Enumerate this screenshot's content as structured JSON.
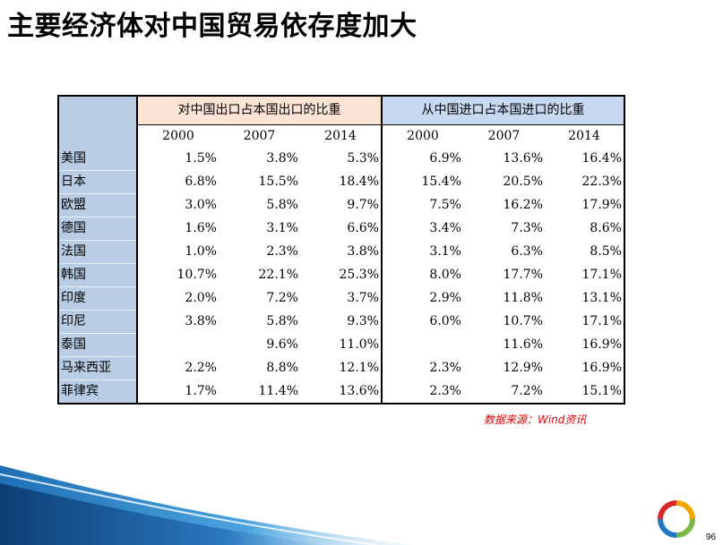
{
  "title": "主要经济体对中国贸易依存度加大",
  "table": {
    "header_export": "对中国出口占本国出口的比重",
    "header_import": "从中国进口占本国进口的比重",
    "years_export": [
      "2000",
      "2007",
      "2014"
    ],
    "years_import": [
      "2000",
      "2007",
      "2014"
    ],
    "rows": [
      {
        "country": "美国",
        "export": [
          "1.5%",
          "3.8%",
          "5.3%"
        ],
        "import": [
          "6.9%",
          "13.6%",
          "16.4%"
        ]
      },
      {
        "country": "日本",
        "export": [
          "6.8%",
          "15.5%",
          "18.4%"
        ],
        "import": [
          "15.4%",
          "20.5%",
          "22.3%"
        ]
      },
      {
        "country": "欧盟",
        "export": [
          "3.0%",
          "5.8%",
          "9.7%"
        ],
        "import": [
          "7.5%",
          "16.2%",
          "17.9%"
        ]
      },
      {
        "country": "德国",
        "export": [
          "1.6%",
          "3.1%",
          "6.6%"
        ],
        "import": [
          "3.4%",
          "7.3%",
          "8.6%"
        ]
      },
      {
        "country": "法国",
        "export": [
          "1.0%",
          "2.3%",
          "3.8%"
        ],
        "import": [
          "3.1%",
          "6.3%",
          "8.5%"
        ]
      },
      {
        "country": "韩国",
        "export": [
          "10.7%",
          "22.1%",
          "25.3%"
        ],
        "import": [
          "8.0%",
          "17.7%",
          "17.1%"
        ]
      },
      {
        "country": "印度",
        "export": [
          "2.0%",
          "7.2%",
          "3.7%"
        ],
        "import": [
          "2.9%",
          "11.8%",
          "13.1%"
        ]
      },
      {
        "country": "印尼",
        "export": [
          "3.8%",
          "5.8%",
          "9.3%"
        ],
        "import": [
          "6.0%",
          "10.7%",
          "17.1%"
        ]
      },
      {
        "country": "泰国",
        "export": [
          "",
          "9.6%",
          "11.0%"
        ],
        "import": [
          "",
          "11.6%",
          "16.9%"
        ]
      },
      {
        "country": "马来西亚",
        "export": [
          "2.2%",
          "8.8%",
          "12.1%"
        ],
        "import": [
          "2.3%",
          "12.9%",
          "16.9%"
        ]
      },
      {
        "country": "菲律宾",
        "export": [
          "1.7%",
          "11.4%",
          "13.6%"
        ],
        "import": [
          "2.3%",
          "7.2%",
          "15.1%"
        ]
      }
    ]
  },
  "source": "数据来源：Wind资讯",
  "page_number": "96",
  "colors": {
    "country_column": "#b8cce4",
    "export_header": "#fbe4d5",
    "import_header": "#c6d9f1",
    "source_text": "#e00000"
  },
  "icons": {
    "logo": "ring-logo-icon",
    "decoration": "blue-swoosh-decoration"
  }
}
